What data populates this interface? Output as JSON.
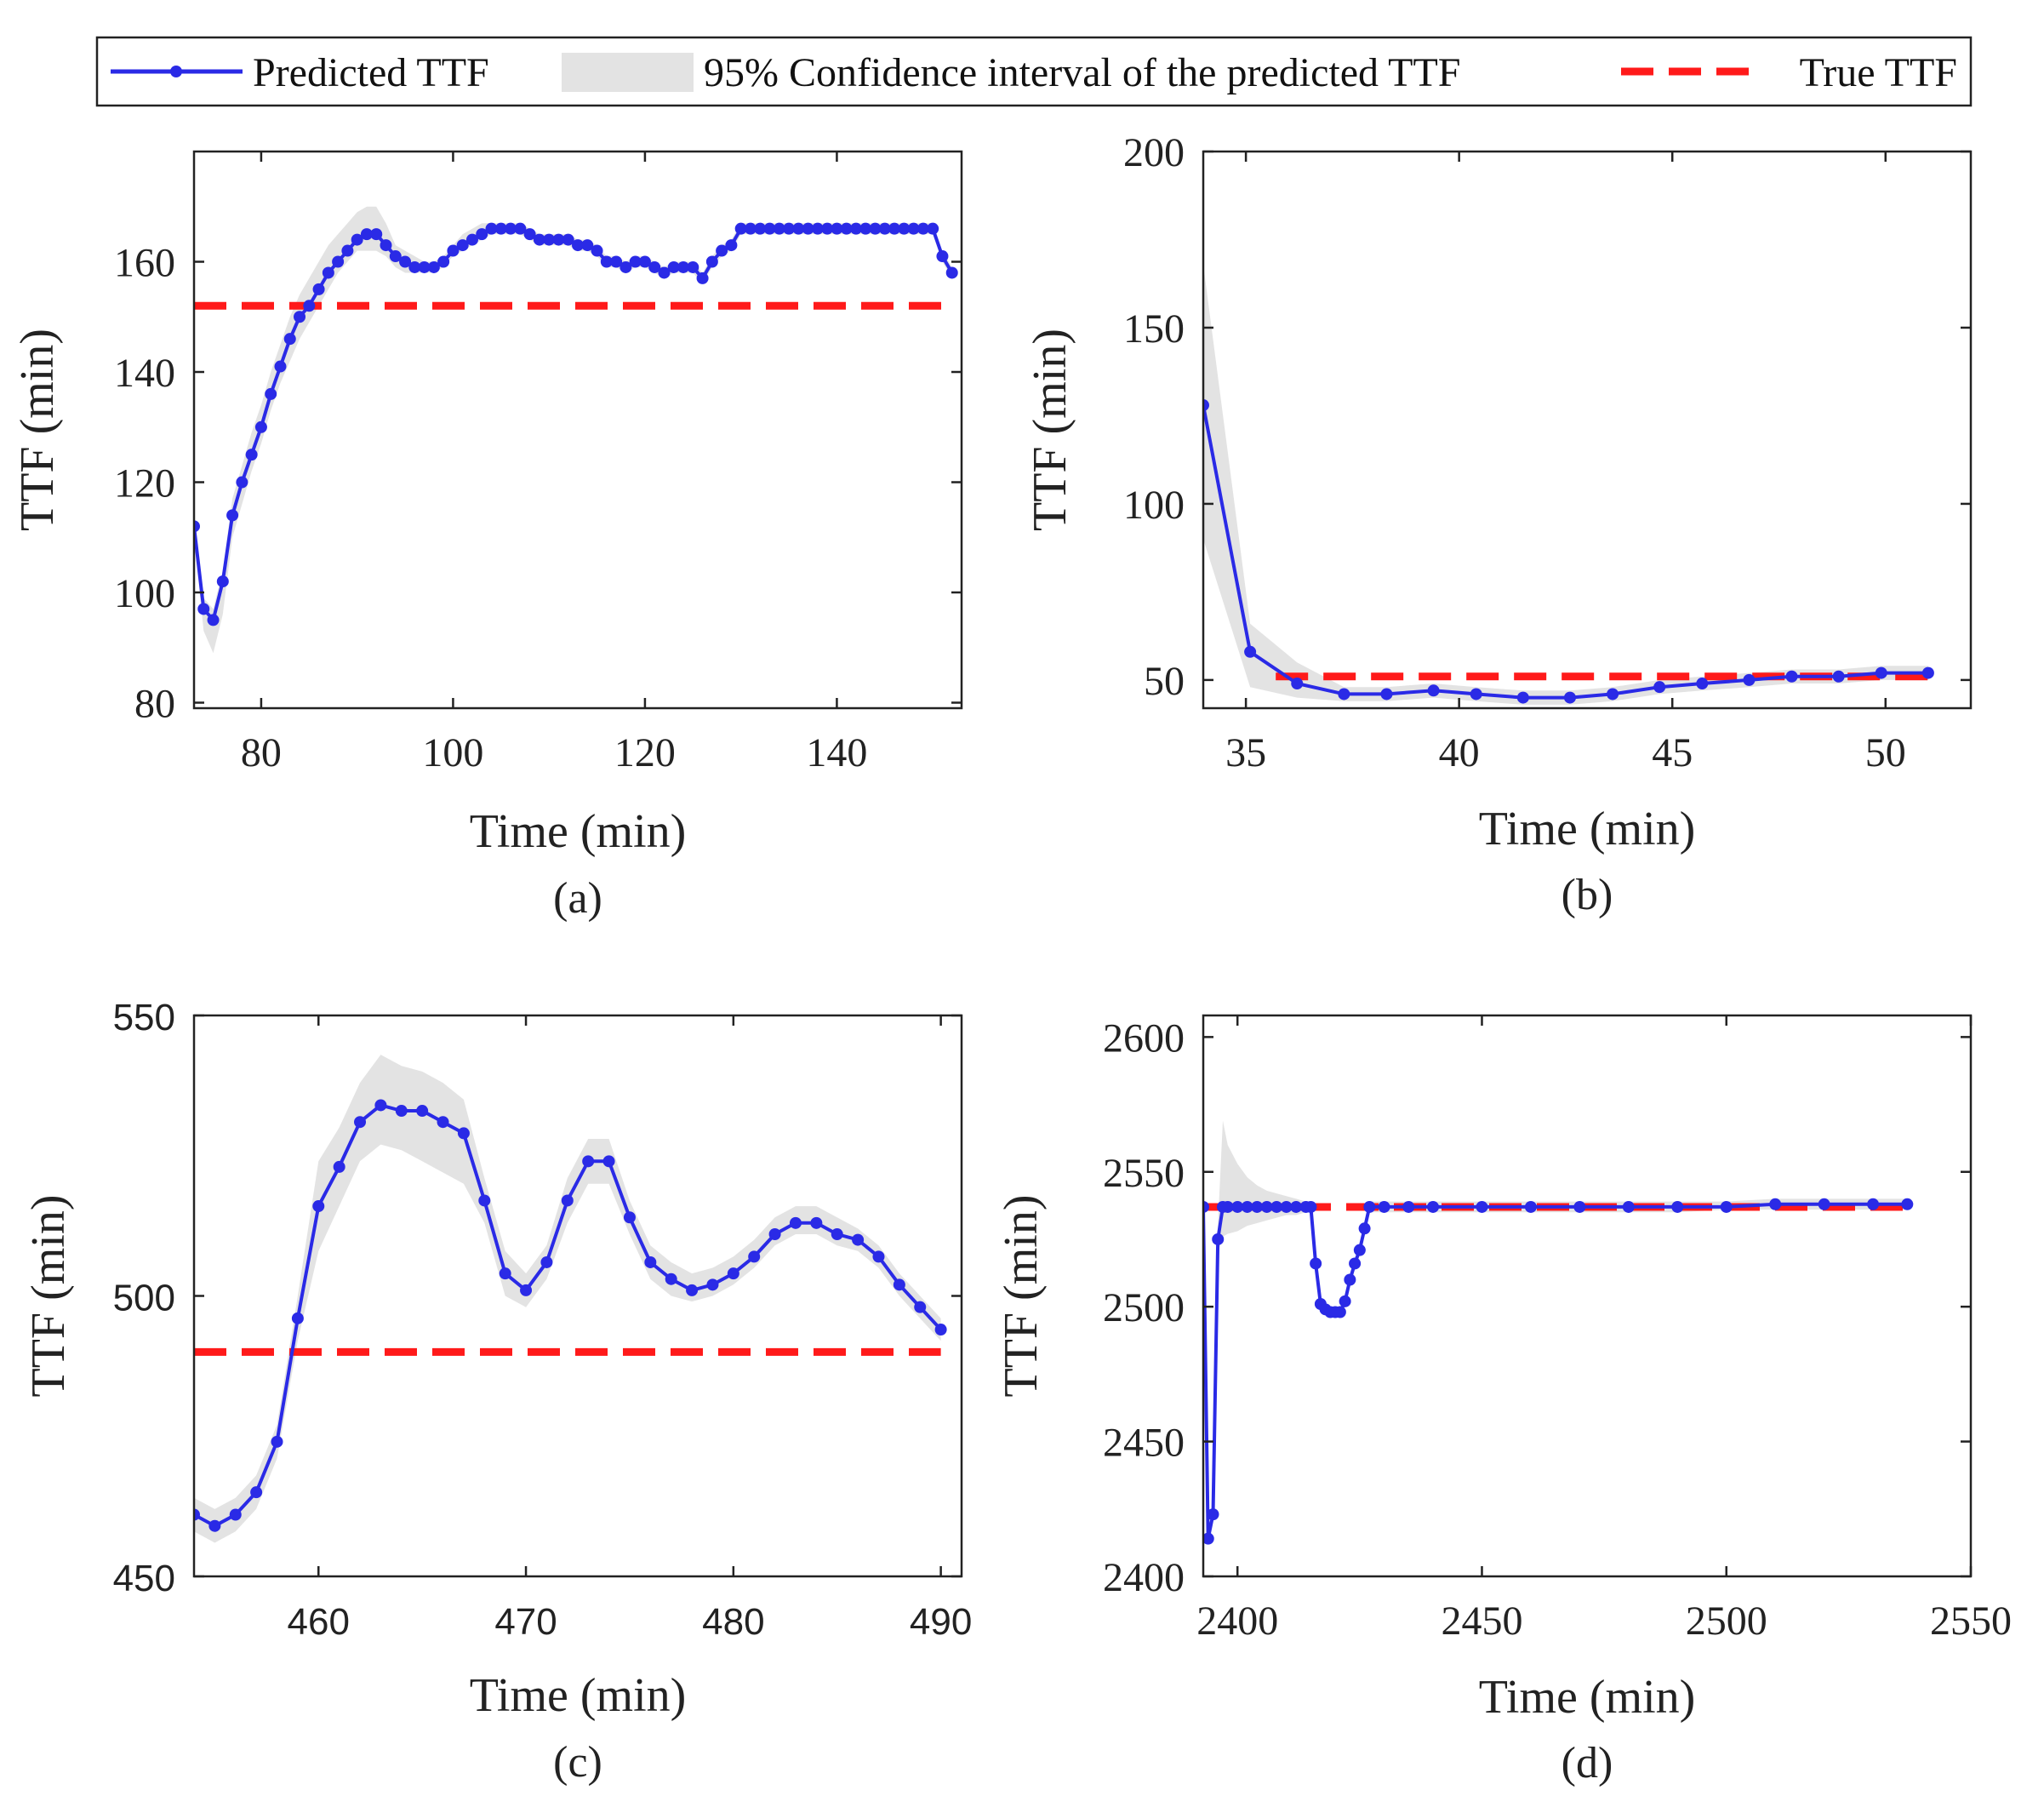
{
  "legend": {
    "predicted": "Predicted TTF",
    "ci": "95% Confidence interval of the predicted TTF",
    "true": "True TTF"
  },
  "colors": {
    "predicted": "#2a2ae6",
    "true": "#ff1a1a",
    "ci": "#e3e3e3"
  },
  "chart_data": [
    {
      "type": "line",
      "panel": "(a)",
      "xlabel": "Time (min)",
      "ylabel": "TTF (min)",
      "xlim": [
        73,
        153
      ],
      "ylim": [
        79,
        180
      ],
      "xticks": [
        80,
        100,
        120,
        140
      ],
      "yticks": [
        80,
        100,
        120,
        140,
        160
      ],
      "true_ttf": 152,
      "true_x": [
        73,
        151
      ],
      "x": [
        73,
        74,
        75,
        76,
        77,
        78,
        79,
        80,
        81,
        82,
        83,
        84,
        85,
        86,
        87,
        88,
        89,
        90,
        91,
        92,
        93,
        94,
        95,
        96,
        97,
        98,
        99,
        100,
        101,
        102,
        103,
        104,
        105,
        106,
        107,
        108,
        109,
        110,
        111,
        112,
        113,
        114,
        115,
        116,
        117,
        118,
        119,
        120,
        121,
        122,
        123,
        124,
        125,
        126,
        127,
        128,
        129,
        130,
        131,
        132,
        133,
        134,
        135,
        136,
        137,
        138,
        139,
        140,
        141,
        142,
        143,
        144,
        145,
        146,
        147,
        148,
        149,
        150,
        151,
        152
      ],
      "y": [
        112,
        97,
        95,
        102,
        114,
        120,
        125,
        130,
        136,
        141,
        146,
        150,
        152,
        155,
        158,
        160,
        162,
        164,
        165,
        165,
        163,
        161,
        160,
        159,
        159,
        159,
        160,
        162,
        163,
        164,
        165,
        166,
        166,
        166,
        166,
        165,
        164,
        164,
        164,
        164,
        163,
        163,
        162,
        160,
        160,
        159,
        160,
        160,
        159,
        158,
        159,
        159,
        159,
        157,
        160,
        162,
        163,
        166,
        166,
        166,
        166,
        166,
        166,
        166,
        166,
        166,
        166,
        166,
        166,
        166,
        166,
        166,
        166,
        166,
        166,
        166,
        166,
        166,
        161,
        158
      ],
      "ci_lower": [
        110,
        93,
        89,
        96,
        110,
        116,
        122,
        127,
        133,
        138,
        142,
        146,
        149,
        152,
        155,
        158,
        160,
        162,
        162,
        162,
        161,
        159,
        158,
        158,
        158,
        158,
        159,
        161,
        162,
        163,
        164,
        165,
        165,
        165,
        165,
        164,
        163,
        163,
        163,
        163,
        162,
        162,
        161,
        159,
        159,
        158,
        159,
        159,
        158,
        157,
        158,
        158,
        158,
        156,
        159,
        161,
        162,
        165,
        165,
        165,
        165,
        165,
        165,
        165,
        165,
        165,
        165,
        165,
        165,
        165,
        165,
        165,
        165,
        165,
        165,
        165,
        165,
        165,
        160,
        157
      ],
      "ci_upper": [
        114,
        99,
        97,
        104,
        117,
        123,
        129,
        134,
        140,
        145,
        150,
        154,
        157,
        160,
        163,
        165,
        167,
        169,
        170,
        170,
        167,
        163,
        162,
        161,
        160,
        160,
        161,
        163,
        165,
        166,
        167,
        167,
        167,
        167,
        167,
        166,
        165,
        165,
        165,
        165,
        164,
        164,
        163,
        161,
        161,
        160,
        161,
        161,
        160,
        159,
        160,
        160,
        160,
        158,
        161,
        163,
        164,
        167,
        167,
        167,
        167,
        167,
        167,
        167,
        167,
        167,
        167,
        167,
        167,
        167,
        167,
        167,
        167,
        167,
        167,
        167,
        167,
        167,
        162,
        159
      ]
    },
    {
      "type": "line",
      "panel": "(b)",
      "xlabel": "Time (min)",
      "ylabel": "TTF (min)",
      "xlim": [
        34,
        52
      ],
      "ylim": [
        42,
        200
      ],
      "xticks": [
        35,
        40,
        45,
        50
      ],
      "yticks": [
        50,
        100,
        150,
        200
      ],
      "true_ttf": 51,
      "true_x": [
        35.7,
        51
      ],
      "x": [
        34,
        35.1,
        36.2,
        37.3,
        38.3,
        39.4,
        40.4,
        41.5,
        42.6,
        43.6,
        44.7,
        45.7,
        46.8,
        47.8,
        48.9,
        49.9,
        51
      ],
      "y": [
        128,
        58,
        49,
        46,
        46,
        47,
        46,
        45,
        45,
        46,
        48,
        49,
        50,
        51,
        51,
        52,
        52
      ],
      "ci_lower": [
        90,
        48,
        45,
        44,
        44,
        45,
        44,
        43,
        43,
        44,
        46,
        47,
        48,
        49,
        49,
        50,
        50
      ],
      "ci_upper": [
        168,
        66,
        55,
        48,
        48,
        49,
        48,
        47,
        47,
        48,
        50,
        51,
        52,
        53,
        53,
        54,
        54
      ]
    },
    {
      "type": "line",
      "panel": "(c)",
      "xlabel": "Time (min)",
      "ylabel": "TTF (min)",
      "xlim": [
        454,
        491
      ],
      "ylim": [
        450,
        550
      ],
      "xticks": [
        460,
        470,
        480,
        490
      ],
      "yticks": [
        450,
        500,
        550
      ],
      "true_ttf": 490,
      "true_x": [
        454,
        490
      ],
      "x": [
        454,
        455,
        456,
        457,
        458,
        459,
        460,
        461,
        462,
        463,
        464,
        465,
        466,
        467,
        468,
        469,
        470,
        471,
        472,
        473,
        474,
        475,
        476,
        477,
        478,
        479,
        480,
        481,
        482,
        483,
        484,
        485,
        486,
        487,
        488,
        489,
        490
      ],
      "y": [
        461,
        459,
        461,
        465,
        474,
        496,
        516,
        523,
        531,
        534,
        533,
        533,
        531,
        529,
        517,
        504,
        501,
        506,
        517,
        524,
        524,
        514,
        506,
        503,
        501,
        502,
        504,
        507,
        511,
        513,
        513,
        511,
        510,
        507,
        502,
        498,
        494
      ],
      "ci_lower": [
        458,
        456,
        458,
        462,
        471,
        492,
        508,
        516,
        524,
        527,
        526,
        524,
        522,
        520,
        513,
        500,
        498,
        503,
        513,
        520,
        520,
        511,
        503,
        500,
        499,
        500,
        502,
        505,
        509,
        511,
        511,
        509,
        508,
        505,
        500,
        496,
        492
      ],
      "ci_upper": [
        464,
        462,
        464,
        468,
        477,
        500,
        524,
        530,
        538,
        543,
        541,
        540,
        538,
        535,
        521,
        508,
        504,
        509,
        521,
        528,
        528,
        517,
        509,
        506,
        504,
        505,
        507,
        510,
        514,
        516,
        516,
        514,
        512,
        509,
        504,
        500,
        496
      ]
    },
    {
      "type": "line",
      "panel": "(d)",
      "xlabel": "Time (min)",
      "ylabel": "TTF (min)",
      "xlim": [
        2393,
        2550
      ],
      "ylim": [
        2400,
        2608
      ],
      "xticks": [
        2400,
        2450,
        2500,
        2550
      ],
      "yticks": [
        2400,
        2450,
        2500,
        2550,
        2600
      ],
      "true_ttf": 2537,
      "true_x": [
        2393,
        2537
      ],
      "x": [
        2393,
        2394,
        2395,
        2396,
        2397,
        2398,
        2400,
        2402,
        2404,
        2406,
        2408,
        2410,
        2412,
        2414,
        2415,
        2416,
        2417,
        2418,
        2419,
        2420,
        2421,
        2422,
        2423,
        2424,
        2425,
        2426,
        2427,
        2430,
        2435,
        2440,
        2450,
        2460,
        2470,
        2480,
        2490,
        2500,
        2510,
        2520,
        2530,
        2537
      ],
      "y": [
        2537,
        2414,
        2423,
        2525,
        2537,
        2537,
        2537,
        2537,
        2537,
        2537,
        2537,
        2537,
        2537,
        2537,
        2537,
        2516,
        2501,
        2499,
        2498,
        2498,
        2498,
        2502,
        2510,
        2516,
        2521,
        2529,
        2537,
        2537,
        2537,
        2537,
        2537,
        2537,
        2537,
        2537,
        2537,
        2537,
        2538,
        2538,
        2538,
        2538
      ],
      "ci_lower": [
        2536,
        2412,
        2421,
        2520,
        2526,
        2527,
        2528,
        2530,
        2531,
        2532,
        2533,
        2534,
        2534,
        2535,
        2535,
        2514,
        2499,
        2497,
        2496,
        2496,
        2496,
        2500,
        2508,
        2514,
        2519,
        2527,
        2535,
        2535,
        2535,
        2535,
        2535,
        2535,
        2535,
        2535,
        2535,
        2536,
        2536,
        2536,
        2536,
        2536
      ],
      "ci_upper": [
        2538,
        2416,
        2425,
        2530,
        2569,
        2560,
        2553,
        2548,
        2545,
        2543,
        2542,
        2541,
        2540,
        2539,
        2539,
        2518,
        2503,
        2501,
        2500,
        2500,
        2500,
        2504,
        2512,
        2518,
        2523,
        2531,
        2539,
        2539,
        2539,
        2539,
        2539,
        2539,
        2539,
        2539,
        2539,
        2539,
        2540,
        2540,
        2540,
        2540
      ]
    }
  ]
}
